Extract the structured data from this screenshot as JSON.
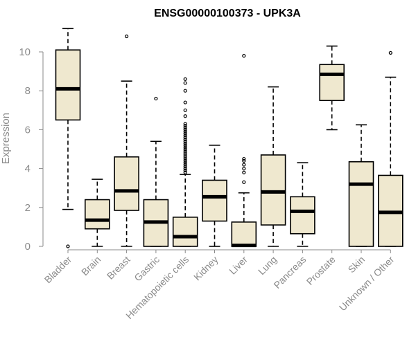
{
  "chart_data": {
    "type": "box",
    "title": "ENSG00000100373 - UPK3A",
    "xlabel": "",
    "ylabel": "Expression",
    "ylim": [
      0,
      11.2
    ],
    "yticks": [
      0,
      2,
      4,
      6,
      8,
      10
    ],
    "grid": false,
    "legend": "none",
    "box_fill": "#efe8cf",
    "stroke": "#000000",
    "categories": [
      "Bladder",
      "Brain",
      "Breast",
      "Gastric",
      "Hematopoietic cells",
      "Kidney",
      "Liver",
      "Lung",
      "Pancreas",
      "Prostate",
      "Skin",
      "Unknown / Other"
    ],
    "boxes": [
      {
        "category": "Bladder",
        "q1": 6.5,
        "median": 8.1,
        "q3": 10.1,
        "whisker_low": 1.9,
        "whisker_high": 11.2,
        "outliers": [
          0.0
        ]
      },
      {
        "category": "Brain",
        "q1": 0.9,
        "median": 1.35,
        "q3": 2.4,
        "whisker_low": 0.0,
        "whisker_high": 3.45,
        "outliers": []
      },
      {
        "category": "Breast",
        "q1": 1.85,
        "median": 2.85,
        "q3": 4.6,
        "whisker_low": 0.0,
        "whisker_high": 8.5,
        "outliers": [
          10.8
        ]
      },
      {
        "category": "Gastric",
        "q1": 0.0,
        "median": 1.25,
        "q3": 2.4,
        "whisker_low": 0.0,
        "whisker_high": 5.4,
        "outliers": [
          7.6
        ]
      },
      {
        "category": "Hematopoietic cells",
        "q1": 0.0,
        "median": 0.5,
        "q3": 1.5,
        "whisker_low": 0.0,
        "whisker_high": 3.7,
        "outliers": [
          3.8,
          3.9,
          4.0,
          4.1,
          4.2,
          4.3,
          4.4,
          4.5,
          4.6,
          4.7,
          4.8,
          4.9,
          5.0,
          5.1,
          5.2,
          5.3,
          5.4,
          5.5,
          5.6,
          5.7,
          5.8,
          5.9,
          6.0,
          6.1,
          6.2,
          6.3,
          6.7,
          7.0,
          7.4,
          8.0,
          8.4,
          8.6
        ]
      },
      {
        "category": "Kidney",
        "q1": 1.3,
        "median": 2.55,
        "q3": 3.4,
        "whisker_low": 0.0,
        "whisker_high": 5.2,
        "outliers": []
      },
      {
        "category": "Liver",
        "q1": 0.0,
        "median": 0.05,
        "q3": 1.25,
        "whisker_low": 0.0,
        "whisker_high": 2.75,
        "outliers": [
          3.3,
          3.8,
          4.0,
          4.2,
          4.4,
          4.5,
          9.8
        ]
      },
      {
        "category": "Lung",
        "q1": 1.1,
        "median": 2.8,
        "q3": 4.7,
        "whisker_low": 0.0,
        "whisker_high": 8.2,
        "outliers": []
      },
      {
        "category": "Pancreas",
        "q1": 0.65,
        "median": 1.8,
        "q3": 2.55,
        "whisker_low": 0.0,
        "whisker_high": 4.3,
        "outliers": []
      },
      {
        "category": "Prostate",
        "q1": 7.5,
        "median": 8.85,
        "q3": 9.35,
        "whisker_low": 6.0,
        "whisker_high": 10.3,
        "outliers": []
      },
      {
        "category": "Skin",
        "q1": 0.0,
        "median": 3.2,
        "q3": 4.35,
        "whisker_low": 0.0,
        "whisker_high": 6.25,
        "outliers": []
      },
      {
        "category": "Unknown / Other",
        "q1": 0.0,
        "median": 1.75,
        "q3": 3.65,
        "whisker_low": 0.0,
        "whisker_high": 8.7,
        "outliers": [
          9.95
        ]
      }
    ]
  }
}
